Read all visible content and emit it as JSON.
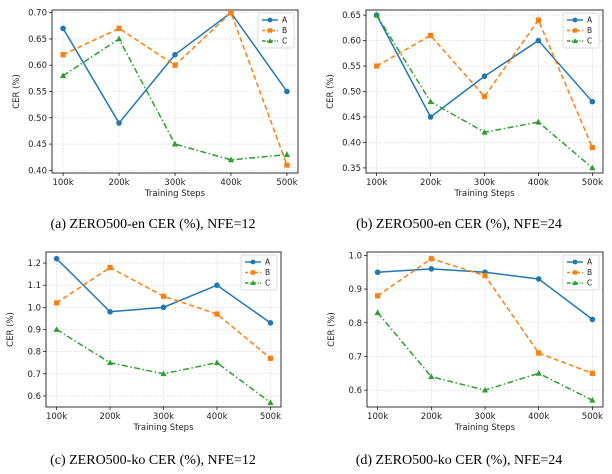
{
  "chart_data": [
    {
      "type": "line",
      "caption": "(a) ZERO500-en CER (%), NFE=12",
      "xlabel": "Training Steps",
      "ylabel": "CER (%)",
      "categories": [
        "100k",
        "200k",
        "300k",
        "400k",
        "500k"
      ],
      "ylim": [
        0.395,
        0.705
      ],
      "yticks": [
        "0.40",
        "0.45",
        "0.50",
        "0.55",
        "0.60",
        "0.65",
        "0.70"
      ],
      "grid": true,
      "legend": "top-right",
      "series": [
        {
          "name": "A",
          "values": [
            0.67,
            0.49,
            0.62,
            0.7,
            0.55
          ]
        },
        {
          "name": "B",
          "values": [
            0.62,
            0.67,
            0.6,
            0.7,
            0.41
          ]
        },
        {
          "name": "C",
          "values": [
            0.58,
            0.65,
            0.45,
            0.42,
            0.43
          ]
        }
      ]
    },
    {
      "type": "line",
      "caption": "(b) ZERO500-en CER (%), NFE=24",
      "xlabel": "Training Steps",
      "ylabel": "CER (%)",
      "categories": [
        "100k",
        "200k",
        "300k",
        "400k",
        "500k"
      ],
      "ylim": [
        0.34,
        0.66
      ],
      "yticks": [
        "0.35",
        "0.40",
        "0.45",
        "0.50",
        "0.55",
        "0.60",
        "0.65"
      ],
      "grid": true,
      "legend": "top-right",
      "series": [
        {
          "name": "A",
          "values": [
            0.65,
            0.45,
            0.53,
            0.6,
            0.48
          ]
        },
        {
          "name": "B",
          "values": [
            0.55,
            0.61,
            0.49,
            0.64,
            0.39
          ]
        },
        {
          "name": "C",
          "values": [
            0.65,
            0.48,
            0.42,
            0.44,
            0.35
          ]
        }
      ]
    },
    {
      "type": "line",
      "caption": "(c) ZERO500-ko CER (%), NFE=12",
      "xlabel": "Training Steps",
      "ylabel": "CER (%)",
      "categories": [
        "100k",
        "200k",
        "300k",
        "400k",
        "500k"
      ],
      "ylim": [
        0.55,
        1.25
      ],
      "yticks": [
        "0.6",
        "0.7",
        "0.8",
        "0.9",
        "1.0",
        "1.1",
        "1.2"
      ],
      "grid": true,
      "legend": "top-right",
      "series": [
        {
          "name": "A",
          "values": [
            1.22,
            0.98,
            1.0,
            1.1,
            0.93
          ]
        },
        {
          "name": "B",
          "values": [
            1.02,
            1.18,
            1.05,
            0.97,
            0.77
          ]
        },
        {
          "name": "C",
          "values": [
            0.9,
            0.75,
            0.7,
            0.75,
            0.57
          ]
        }
      ]
    },
    {
      "type": "line",
      "caption": "(d) ZERO500-ko CER (%), NFE=24",
      "xlabel": "Training Steps",
      "ylabel": "CER (%)",
      "categories": [
        "100k",
        "200k",
        "300k",
        "400k",
        "500k"
      ],
      "ylim": [
        0.55,
        1.01
      ],
      "yticks": [
        "0.6",
        "0.7",
        "0.8",
        "0.9",
        "1.0"
      ],
      "grid": true,
      "legend": "top-right",
      "series": [
        {
          "name": "A",
          "values": [
            0.95,
            0.96,
            0.95,
            0.93,
            0.81
          ]
        },
        {
          "name": "B",
          "values": [
            0.88,
            0.99,
            0.94,
            0.71,
            0.65
          ]
        },
        {
          "name": "C",
          "values": [
            0.83,
            0.64,
            0.6,
            0.65,
            0.57
          ]
        }
      ]
    }
  ],
  "styles": {
    "colors": {
      "A": "#1f77b4",
      "B": "#ff7f0e",
      "C": "#2ca02c"
    },
    "dash": {
      "A": "solid",
      "B": "dashed",
      "C": "dash-dot"
    },
    "markers": {
      "A": "circle",
      "B": "square",
      "C": "triangle-up"
    }
  }
}
